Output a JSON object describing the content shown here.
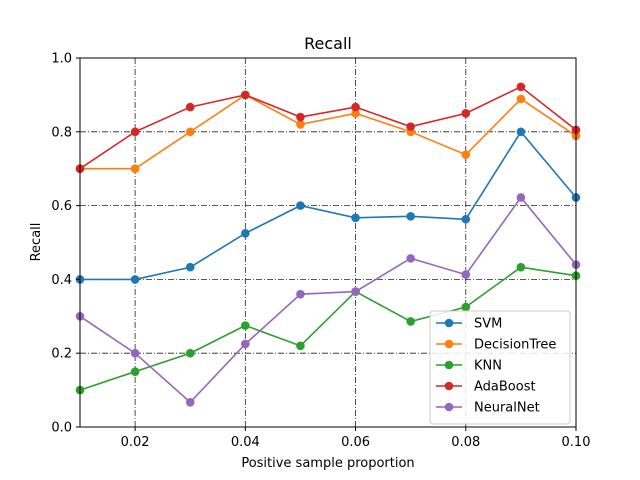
{
  "chart_data": {
    "type": "line",
    "title": "Recall",
    "xlabel": "Positive sample proportion",
    "ylabel": "Recall",
    "xlim": [
      0.01,
      0.1
    ],
    "ylim": [
      0.0,
      1.0
    ],
    "xticks": [
      "0.02",
      "0.04",
      "0.06",
      "0.08",
      "0.10"
    ],
    "yticks": [
      "0.0",
      "0.2",
      "0.4",
      "0.6",
      "0.8",
      "1.0"
    ],
    "grid": true,
    "legend_position": "lower-right",
    "x": [
      0.01,
      0.02,
      0.03,
      0.04,
      0.05,
      0.06,
      0.07,
      0.08,
      0.09,
      0.1
    ],
    "series": [
      {
        "name": "SVM",
        "color": "#1f77b4",
        "values": [
          0.4,
          0.4,
          0.433,
          0.525,
          0.6,
          0.567,
          0.571,
          0.563,
          0.8,
          0.622
        ]
      },
      {
        "name": "DecisionTree",
        "color": "#ff7f0e",
        "values": [
          0.7,
          0.7,
          0.8,
          0.9,
          0.82,
          0.85,
          0.8,
          0.738,
          0.889,
          0.789
        ]
      },
      {
        "name": "KNN",
        "color": "#2ca02c",
        "values": [
          0.1,
          0.15,
          0.2,
          0.275,
          0.22,
          0.367,
          0.286,
          0.325,
          0.433,
          0.41
        ]
      },
      {
        "name": "AdaBoost",
        "color": "#d62728",
        "values": [
          0.7,
          0.8,
          0.867,
          0.9,
          0.84,
          0.867,
          0.814,
          0.85,
          0.922,
          0.805
        ]
      },
      {
        "name": "NeuralNet",
        "color": "#9467bd",
        "values": [
          0.3,
          0.2,
          0.067,
          0.225,
          0.36,
          0.367,
          0.457,
          0.413,
          0.622,
          0.44
        ]
      }
    ]
  }
}
